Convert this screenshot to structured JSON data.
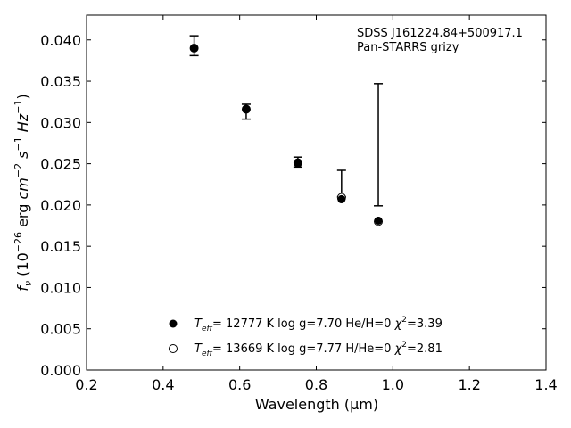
{
  "chart_data": {
    "type": "scatter",
    "xlabel": "Wavelength (μm)",
    "ylabel_parts": {
      "f": "f",
      "nu": "ν",
      "open": " (10",
      "exp1": "−26",
      "erg": " erg ",
      "cm": "cm",
      "exp2": "−2",
      "s": " s",
      "exp3": "−1",
      "hz": " Hz",
      "exp4": "−1",
      "close": ")"
    },
    "annotation": [
      "SDSS J161224.84+500917.1",
      "Pan-STARRS grizy"
    ],
    "xlim": [
      0.2,
      1.4
    ],
    "ylim": [
      0.0,
      0.043
    ],
    "xticks": [
      "0.2",
      "0.4",
      "0.6",
      "0.8",
      "1.0",
      "1.2",
      "1.4"
    ],
    "yticks": [
      "0.000",
      "0.005",
      "0.010",
      "0.015",
      "0.020",
      "0.025",
      "0.030",
      "0.035",
      "0.040"
    ],
    "observed": {
      "x": [
        0.481,
        0.617,
        0.752,
        0.866,
        0.962
      ],
      "y": [
        0.0393,
        0.0313,
        0.0252,
        0.0226,
        0.0273
      ],
      "err": [
        0.0012,
        0.0009,
        0.0006,
        0.0016,
        0.0074
      ]
    },
    "series": [
      {
        "marker": "filled",
        "x": [
          0.481,
          0.617,
          0.752,
          0.866,
          0.962
        ],
        "y": [
          0.039,
          0.0316,
          0.0251,
          0.0207,
          0.0181
        ]
      },
      {
        "marker": "open",
        "x": [
          0.481,
          0.617,
          0.752,
          0.866,
          0.962
        ],
        "y": [
          0.039,
          0.0316,
          0.0251,
          0.0209,
          0.018
        ]
      }
    ],
    "legend": [
      {
        "t": "T",
        "sub": "eff",
        "rest": "= 12777 K  log g=7.70  He/H=0  ",
        "chi": "χ",
        "sup": "2",
        "val": "=3.39"
      },
      {
        "t": "T",
        "sub": "eff",
        "rest": "= 13669 K  log g=7.77  H/He=0  ",
        "chi": "χ",
        "sup": "2",
        "val": "=2.81"
      }
    ]
  }
}
